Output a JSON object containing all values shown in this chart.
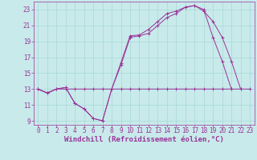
{
  "bg_color": "#c8eaea",
  "line_color": "#993399",
  "grid_color": "#a8d8d8",
  "xlabel": "Windchill (Refroidissement éolien,°C)",
  "xlabel_fontsize": 6.5,
  "tick_fontsize": 5.5,
  "xlim": [
    -0.5,
    23.5
  ],
  "ylim": [
    8.5,
    24.0
  ],
  "yticks": [
    9,
    11,
    13,
    15,
    17,
    19,
    21,
    23
  ],
  "xticks": [
    0,
    1,
    2,
    3,
    4,
    5,
    6,
    7,
    8,
    9,
    10,
    11,
    12,
    13,
    14,
    15,
    16,
    17,
    18,
    19,
    20,
    21,
    22,
    23
  ],
  "line1_x": [
    0,
    1,
    2,
    3,
    4,
    5,
    6,
    7,
    8,
    9,
    10,
    11,
    12,
    13,
    14,
    15,
    16,
    17,
    18,
    19,
    20,
    21,
    22,
    23
  ],
  "line1_y": [
    13.0,
    12.5,
    13.0,
    13.0,
    13.0,
    13.0,
    13.0,
    13.0,
    13.0,
    13.0,
    13.0,
    13.0,
    13.0,
    13.0,
    13.0,
    13.0,
    13.0,
    13.0,
    13.0,
    13.0,
    13.0,
    13.0,
    13.0,
    13.0
  ],
  "line2_x": [
    0,
    1,
    2,
    3,
    4,
    5,
    6,
    7,
    8,
    9,
    10,
    11,
    12,
    13,
    14,
    15,
    16,
    17,
    18,
    19,
    20,
    21,
    22
  ],
  "line2_y": [
    13.0,
    12.5,
    13.0,
    13.2,
    11.2,
    10.5,
    9.3,
    9.0,
    13.0,
    16.3,
    19.7,
    19.8,
    20.5,
    21.5,
    22.5,
    22.8,
    23.3,
    23.5,
    22.8,
    21.5,
    19.5,
    16.5,
    13.0
  ],
  "line3_x": [
    0,
    1,
    2,
    3,
    4,
    5,
    6,
    7,
    8,
    9,
    10,
    11,
    12,
    13,
    14,
    15,
    16,
    17,
    18,
    19,
    20,
    21,
    22,
    23
  ],
  "line3_y": [
    13.0,
    12.5,
    13.0,
    13.2,
    11.2,
    10.5,
    9.3,
    9.0,
    13.0,
    16.0,
    19.5,
    19.7,
    20.0,
    21.0,
    22.0,
    22.5,
    23.3,
    23.5,
    23.0,
    19.5,
    16.5,
    13.0,
    null,
    null
  ]
}
